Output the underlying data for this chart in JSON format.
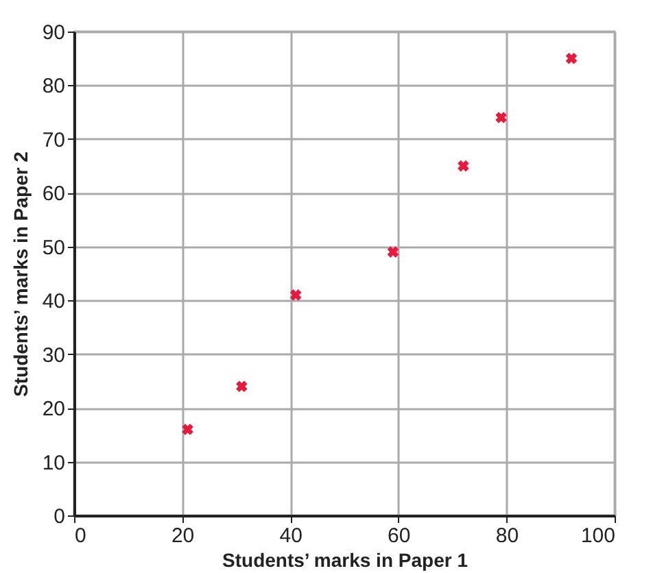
{
  "chart_data": {
    "type": "scatter",
    "xlabel": "Students’ marks in Paper 1",
    "ylabel": "Students’ marks in Paper 2",
    "x": [
      21,
      31,
      41,
      59,
      72,
      79,
      92
    ],
    "series": [
      {
        "color": "#e8193c",
        "values": [
          16,
          24,
          41,
          49,
          65,
          74,
          85
        ]
      }
    ],
    "xlim": [
      0,
      100
    ],
    "xticks": [
      0,
      20,
      40,
      60,
      80,
      100
    ],
    "ylim": [
      0,
      90
    ],
    "yticks": [
      0,
      10,
      20,
      30,
      40,
      50,
      60,
      70,
      80,
      90
    ],
    "grid": true,
    "marker": "cross"
  }
}
